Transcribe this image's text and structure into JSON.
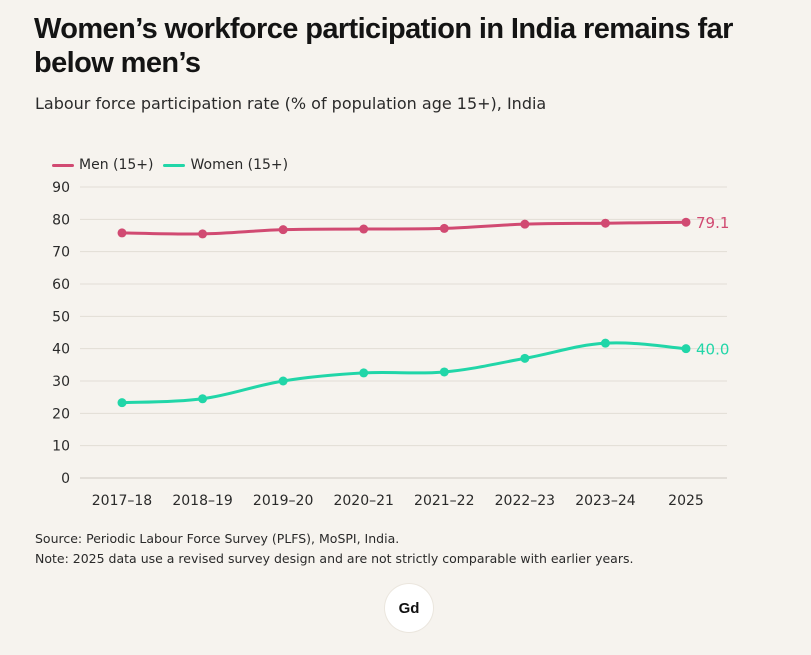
{
  "header": {
    "title": "Women’s workforce participation in India remains far below men’s",
    "subtitle": "Labour force participation rate (% of population age 15+), India"
  },
  "legend": [
    {
      "label": "Men (15+)",
      "color": "#d14a72"
    },
    {
      "label": "Women (15+)",
      "color": "#21d6a8"
    }
  ],
  "chart_data": {
    "type": "line",
    "title": "Women’s workforce participation in India remains far below men’s",
    "subtitle": "Labour force participation rate (% of population age 15+), India",
    "xlabel": "",
    "ylabel": "",
    "categories": [
      "2017–18",
      "2018–19",
      "2019–20",
      "2020–21",
      "2021–22",
      "2022–23",
      "2023–24",
      "2025"
    ],
    "ylim": [
      0,
      90
    ],
    "yticks": [
      0,
      10,
      20,
      30,
      40,
      50,
      60,
      70,
      80,
      90
    ],
    "grid": true,
    "legend_position": "top-left",
    "series": [
      {
        "name": "Men (15+)",
        "color": "#d14a72",
        "values": [
          75.8,
          75.5,
          76.8,
          77.0,
          77.2,
          78.5,
          78.8,
          79.1
        ],
        "end_label": "79.1"
      },
      {
        "name": "Women (15+)",
        "color": "#21d6a8",
        "values": [
          23.3,
          24.5,
          30.0,
          32.5,
          32.8,
          37.0,
          41.7,
          40.0
        ],
        "end_label": "40.0"
      }
    ]
  },
  "footer": {
    "source": "Source: Periodic Labour Force Survey (PLFS), MoSPI, India.",
    "note": "Note: 2025 data use a revised survey design and are not strictly comparable with earlier years."
  },
  "logo": {
    "text": "Gd"
  }
}
